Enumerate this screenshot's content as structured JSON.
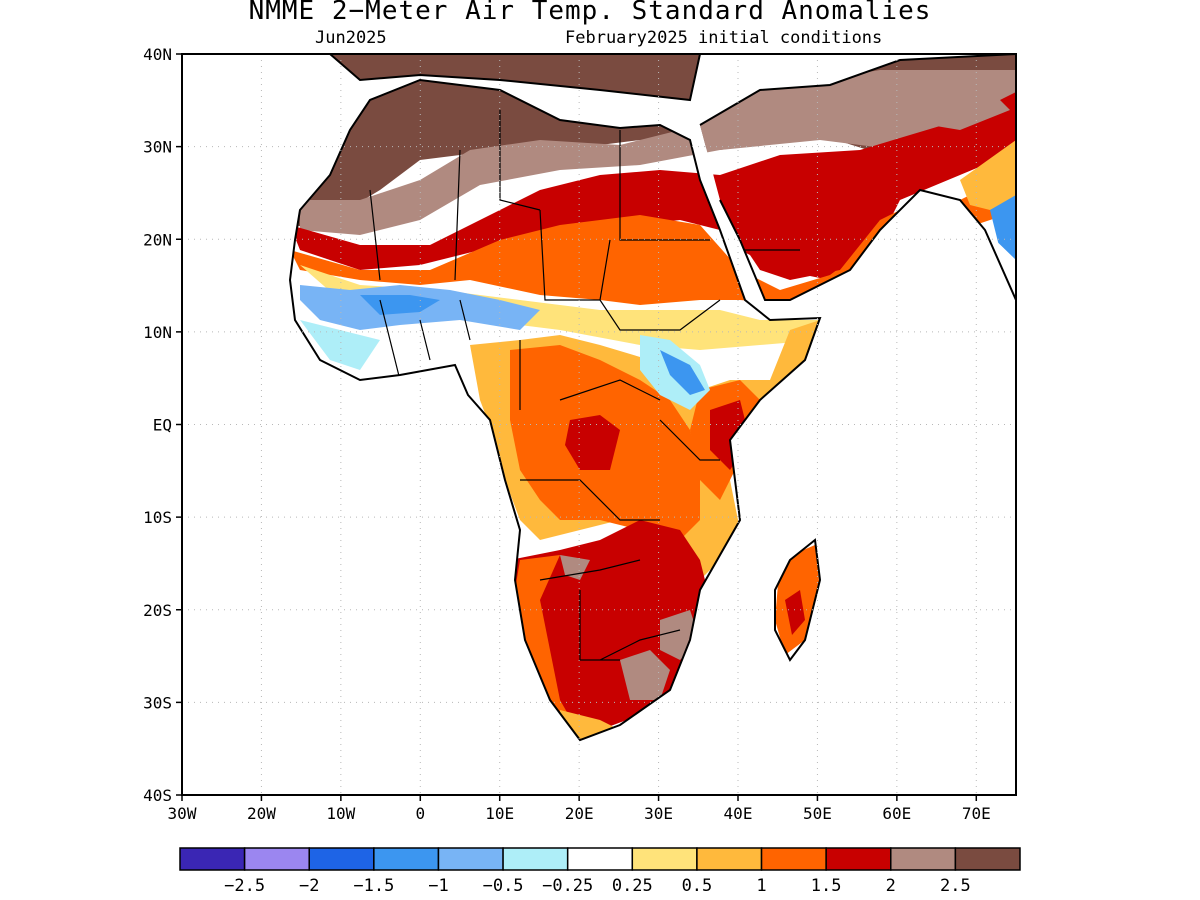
{
  "title": "NMME 2−Meter Air Temp. Standard Anomalies",
  "subtitle_left": "Jun2025",
  "subtitle_right": "February2025 initial conditions",
  "map": {
    "lon_range": [
      -30,
      75
    ],
    "lat_range": [
      -40,
      40
    ],
    "lat_ticks": [
      {
        "value": 40,
        "label": "40N"
      },
      {
        "value": 30,
        "label": "30N"
      },
      {
        "value": 20,
        "label": "20N"
      },
      {
        "value": 10,
        "label": "10N"
      },
      {
        "value": 0,
        "label": "EQ"
      },
      {
        "value": -10,
        "label": "10S"
      },
      {
        "value": -20,
        "label": "20S"
      },
      {
        "value": -30,
        "label": "30S"
      },
      {
        "value": -40,
        "label": "40S"
      }
    ],
    "lon_ticks": [
      {
        "value": -30,
        "label": "30W"
      },
      {
        "value": -20,
        "label": "20W"
      },
      {
        "value": -10,
        "label": "10W"
      },
      {
        "value": 0,
        "label": "0"
      },
      {
        "value": 10,
        "label": "10E"
      },
      {
        "value": 20,
        "label": "20E"
      },
      {
        "value": 30,
        "label": "30E"
      },
      {
        "value": 40,
        "label": "40E"
      },
      {
        "value": 50,
        "label": "50E"
      },
      {
        "value": 60,
        "label": "60E"
      },
      {
        "value": 70,
        "label": "70E"
      }
    ],
    "gridlines": "dotted"
  },
  "colorbar": {
    "colors": [
      "#3a26b4",
      "#9b86f0",
      "#1e64e6",
      "#3c96f0",
      "#78b4f5",
      "#aeeef8",
      "#ffffff",
      "#ffe37a",
      "#ffb93c",
      "#ff6400",
      "#c80000",
      "#b08a80",
      "#7a4b40"
    ],
    "labels": [
      "−2.5",
      "−2",
      "−1.5",
      "−1",
      "−0.5",
      "−0.25",
      "0.25",
      "0.5",
      "1",
      "1.5",
      "2",
      "2.5"
    ]
  }
}
